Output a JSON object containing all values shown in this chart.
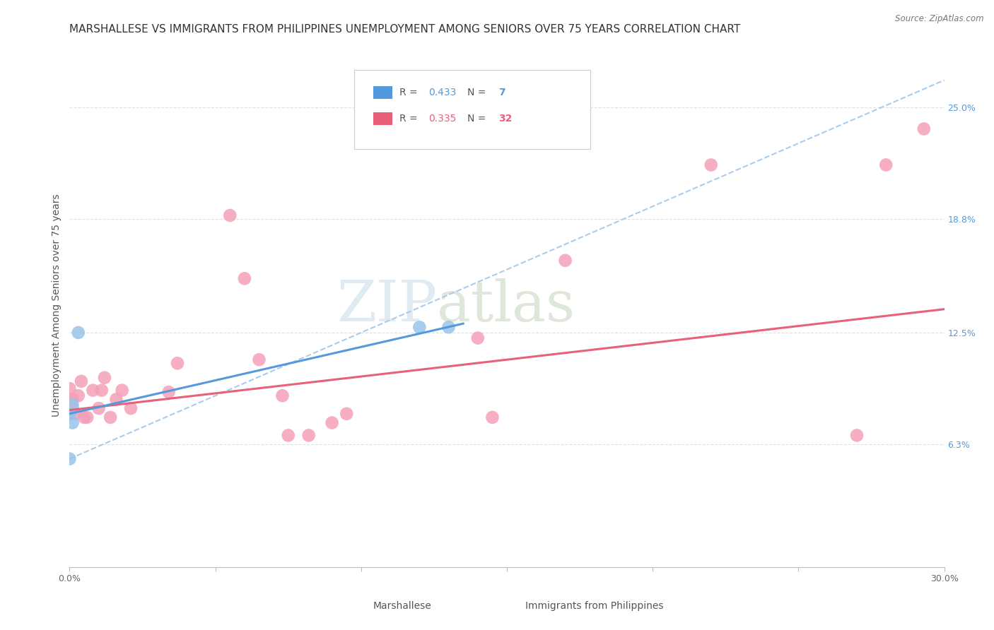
{
  "title": "MARSHALLESE VS IMMIGRANTS FROM PHILIPPINES UNEMPLOYMENT AMONG SENIORS OVER 75 YEARS CORRELATION CHART",
  "source": "Source: ZipAtlas.com",
  "ylabel": "Unemployment Among Seniors over 75 years",
  "xlim": [
    0.0,
    0.3
  ],
  "ylim": [
    -0.005,
    0.285
  ],
  "xticks": [
    0.0,
    0.05,
    0.1,
    0.15,
    0.2,
    0.25,
    0.3
  ],
  "yticks_right": [
    0.063,
    0.125,
    0.188,
    0.25
  ],
  "yticklabels_right": [
    "6.3%",
    "12.5%",
    "18.8%",
    "25.0%"
  ],
  "marshallese_points": [
    [
      0.0,
      0.055
    ],
    [
      0.0,
      0.08
    ],
    [
      0.001,
      0.085
    ],
    [
      0.001,
      0.075
    ],
    [
      0.003,
      0.125
    ],
    [
      0.12,
      0.128
    ],
    [
      0.13,
      0.128
    ]
  ],
  "philippines_points": [
    [
      0.0,
      0.088
    ],
    [
      0.0,
      0.094
    ],
    [
      0.001,
      0.083
    ],
    [
      0.001,
      0.088
    ],
    [
      0.002,
      0.08
    ],
    [
      0.003,
      0.09
    ],
    [
      0.004,
      0.098
    ],
    [
      0.005,
      0.078
    ],
    [
      0.006,
      0.078
    ],
    [
      0.008,
      0.093
    ],
    [
      0.01,
      0.083
    ],
    [
      0.011,
      0.093
    ],
    [
      0.012,
      0.1
    ],
    [
      0.014,
      0.078
    ],
    [
      0.016,
      0.088
    ],
    [
      0.018,
      0.093
    ],
    [
      0.021,
      0.083
    ],
    [
      0.034,
      0.092
    ],
    [
      0.037,
      0.108
    ],
    [
      0.055,
      0.19
    ],
    [
      0.06,
      0.155
    ],
    [
      0.065,
      0.11
    ],
    [
      0.073,
      0.09
    ],
    [
      0.075,
      0.068
    ],
    [
      0.082,
      0.068
    ],
    [
      0.09,
      0.075
    ],
    [
      0.095,
      0.08
    ],
    [
      0.14,
      0.122
    ],
    [
      0.145,
      0.078
    ],
    [
      0.17,
      0.165
    ],
    [
      0.22,
      0.218
    ],
    [
      0.27,
      0.068
    ],
    [
      0.28,
      0.218
    ],
    [
      0.293,
      0.238
    ]
  ],
  "marsh_line_solid": {
    "x": [
      0.0,
      0.135
    ],
    "y": [
      0.08,
      0.13
    ],
    "color": "#5599dd",
    "linestyle": "-",
    "linewidth": 2.2
  },
  "marsh_line_dash": {
    "x": [
      0.0,
      0.3
    ],
    "y": [
      0.055,
      0.265
    ],
    "color": "#aaccee",
    "linestyle": "--",
    "linewidth": 1.5
  },
  "phil_line": {
    "x": [
      0.0,
      0.3
    ],
    "y": [
      0.082,
      0.138
    ],
    "color": "#e8607a",
    "linestyle": "-",
    "linewidth": 2.2
  },
  "dot_size": 180,
  "marshallese_color": "#99c4e8",
  "philippines_color": "#f4a0b8",
  "background_color": "#ffffff",
  "grid_color": "#e0e0e0",
  "watermark_zip": "ZIP",
  "watermark_atlas": "atlas",
  "watermark_color_zip": "#ccdde8",
  "watermark_color_atlas": "#c8d8c0",
  "title_fontsize": 11,
  "axis_label_fontsize": 10,
  "tick_fontsize": 9,
  "legend_blue_color": "#5599dd",
  "legend_pink_color": "#e8607a",
  "legend_n_blue": "#5599dd",
  "legend_n_pink": "#e8607a"
}
